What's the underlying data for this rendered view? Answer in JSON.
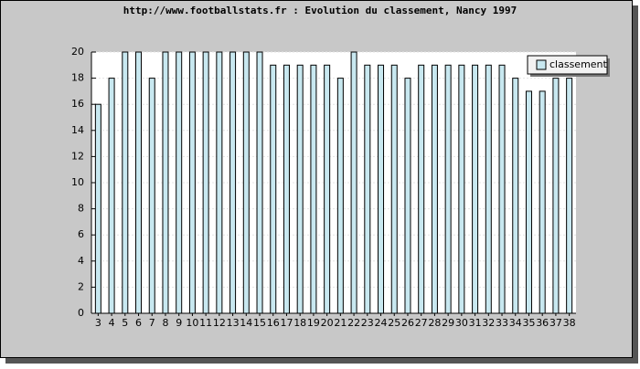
{
  "chart_data": {
    "type": "bar",
    "title": "http://www.footballstats.fr : Evolution du classement, Nancy 1997",
    "categories": [
      "3",
      "4",
      "5",
      "6",
      "7",
      "8",
      "9",
      "10",
      "11",
      "12",
      "13",
      "14",
      "15",
      "16",
      "17",
      "18",
      "19",
      "20",
      "21",
      "22",
      "23",
      "24",
      "25",
      "26",
      "27",
      "28",
      "29",
      "30",
      "31",
      "32",
      "33",
      "34",
      "35",
      "36",
      "37",
      "38"
    ],
    "series": [
      {
        "name": "classement",
        "color": "#c8e8f0",
        "values": [
          16,
          18,
          20,
          20,
          18,
          20,
          20,
          20,
          20,
          20,
          20,
          20,
          20,
          19,
          19,
          19,
          19,
          19,
          18,
          20,
          19,
          19,
          19,
          18,
          19,
          19,
          19,
          19,
          19,
          19,
          19,
          18,
          17,
          17,
          18,
          18
        ]
      }
    ],
    "ylim": [
      0,
      20
    ],
    "yticks": [
      0,
      2,
      4,
      6,
      8,
      10,
      12,
      14,
      16,
      18,
      20
    ],
    "grid": true,
    "legend": "top-right"
  }
}
